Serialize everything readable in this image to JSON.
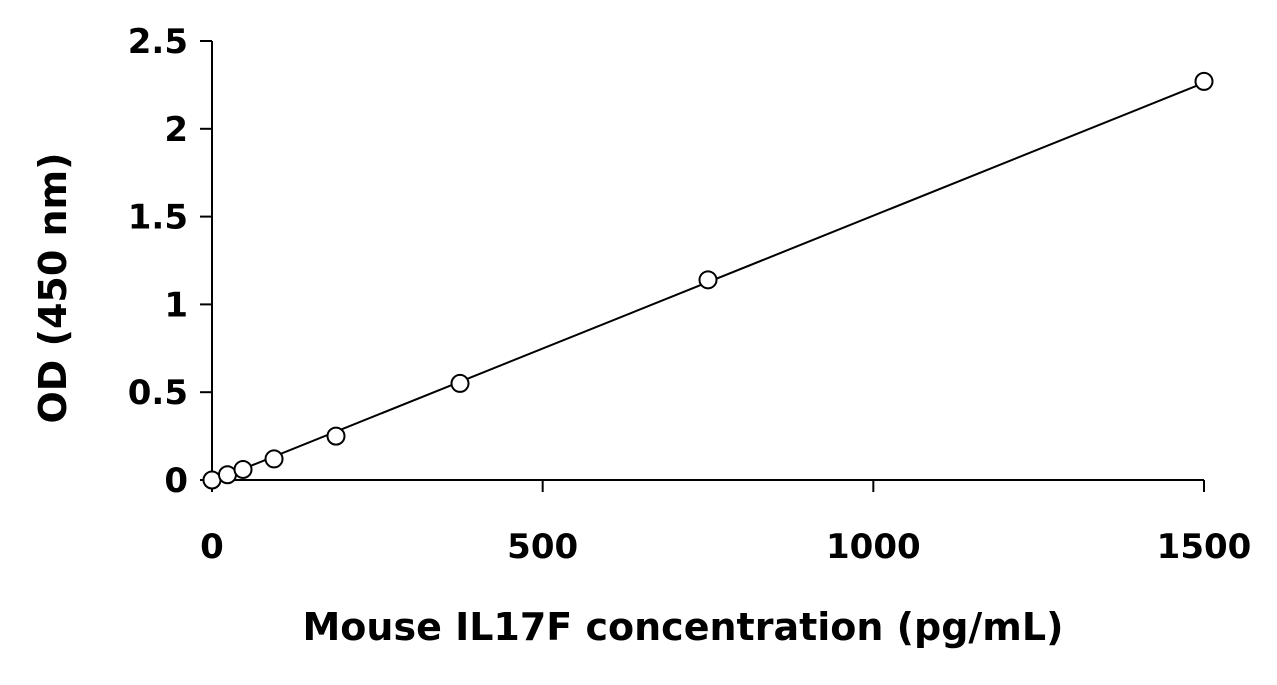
{
  "chart_data": {
    "type": "scatter",
    "title": "",
    "xlabel": "Mouse IL17F concentration (pg/mL)",
    "ylabel": "OD (450 nm)",
    "xlim": [
      0,
      1500
    ],
    "ylim": [
      0,
      2.5
    ],
    "x_ticks": [
      0,
      500,
      1000,
      1500
    ],
    "x_tick_labels": [
      "0",
      "500",
      "1000",
      "1500"
    ],
    "y_ticks": [
      0,
      0.5,
      1,
      1.5,
      2,
      2.5
    ],
    "y_tick_labels": [
      "0",
      "0.5",
      "1",
      "1.5",
      "2",
      "2.5"
    ],
    "grid": false,
    "legend": "none",
    "marker": "open-circle",
    "series": [
      {
        "x": [
          0,
          23.4,
          46.9,
          93.8,
          187.5,
          375,
          750,
          1500
        ],
        "y": [
          0.0,
          0.03,
          0.06,
          0.12,
          0.25,
          0.55,
          1.14,
          2.27
        ]
      }
    ],
    "trendline": {
      "type": "linear",
      "x": [
        0,
        1500
      ],
      "y": [
        -0.008,
        2.262
      ]
    },
    "colors": {
      "marker_stroke": "#000000",
      "marker_fill": "#ffffff",
      "line": "#000000",
      "axis": "#000000"
    }
  }
}
